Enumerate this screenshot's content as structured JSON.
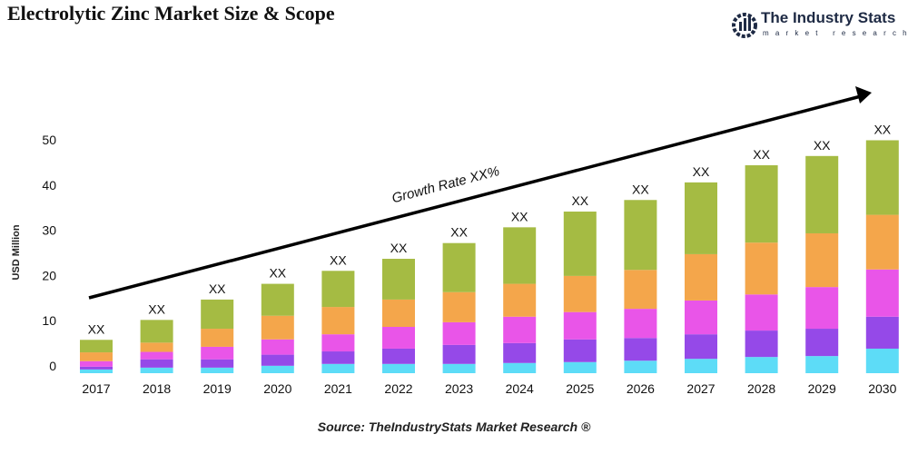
{
  "title": "Electrolytic Zinc Market Size & Scope",
  "logo": {
    "name": "The Industry Stats",
    "tagline": "market research"
  },
  "source": "Source: TheIndustryStats Market Research ®",
  "chart_data": {
    "type": "bar",
    "stacked": true,
    "title": "Electrolytic Zinc Market Size & Scope",
    "xlabel": "",
    "ylabel": "USD Million",
    "ylim": [
      0,
      50
    ],
    "yticks": [
      0,
      10,
      20,
      30,
      40,
      50
    ],
    "grid": false,
    "categories": [
      "2017",
      "2018",
      "2019",
      "2020",
      "2021",
      "2022",
      "2023",
      "2024",
      "2025",
      "2026",
      "2027",
      "2028",
      "2029",
      "2030"
    ],
    "bar_labels": [
      "XX",
      "XX",
      "XX",
      "XX",
      "XX",
      "XX",
      "XX",
      "XX",
      "XX",
      "XX",
      "XX",
      "XX",
      "XX",
      "XX"
    ],
    "series": [
      {
        "color": "#5ddcf7",
        "values": [
          0.8,
          1.2,
          1.2,
          1.6,
          2.0,
          2.0,
          2.0,
          2.2,
          2.4,
          2.7,
          3.1,
          3.5,
          3.7,
          5.3
        ]
      },
      {
        "color": "#9549e8",
        "values": [
          0.6,
          1.8,
          1.8,
          2.4,
          2.7,
          3.3,
          4.1,
          4.3,
          4.9,
          4.9,
          5.3,
          5.7,
          5.9,
          6.9
        ]
      },
      {
        "color": "#e955e8",
        "values": [
          1.2,
          1.6,
          2.7,
          3.3,
          3.7,
          4.7,
          4.9,
          5.7,
          5.9,
          6.3,
          7.3,
          7.8,
          9.0,
          10.2
        ]
      },
      {
        "color": "#f4a64b",
        "values": [
          1.9,
          2.0,
          3.9,
          5.1,
          5.9,
          5.9,
          6.5,
          7.1,
          7.8,
          8.4,
          10.0,
          11.2,
          11.6,
          11.8
        ]
      },
      {
        "color": "#a5bb43",
        "values": [
          2.7,
          4.9,
          6.3,
          6.9,
          7.8,
          8.8,
          10.6,
          12.2,
          13.9,
          15.1,
          15.5,
          16.7,
          16.7,
          16.1
        ]
      }
    ],
    "annotation": "Growth Rate XX%"
  }
}
